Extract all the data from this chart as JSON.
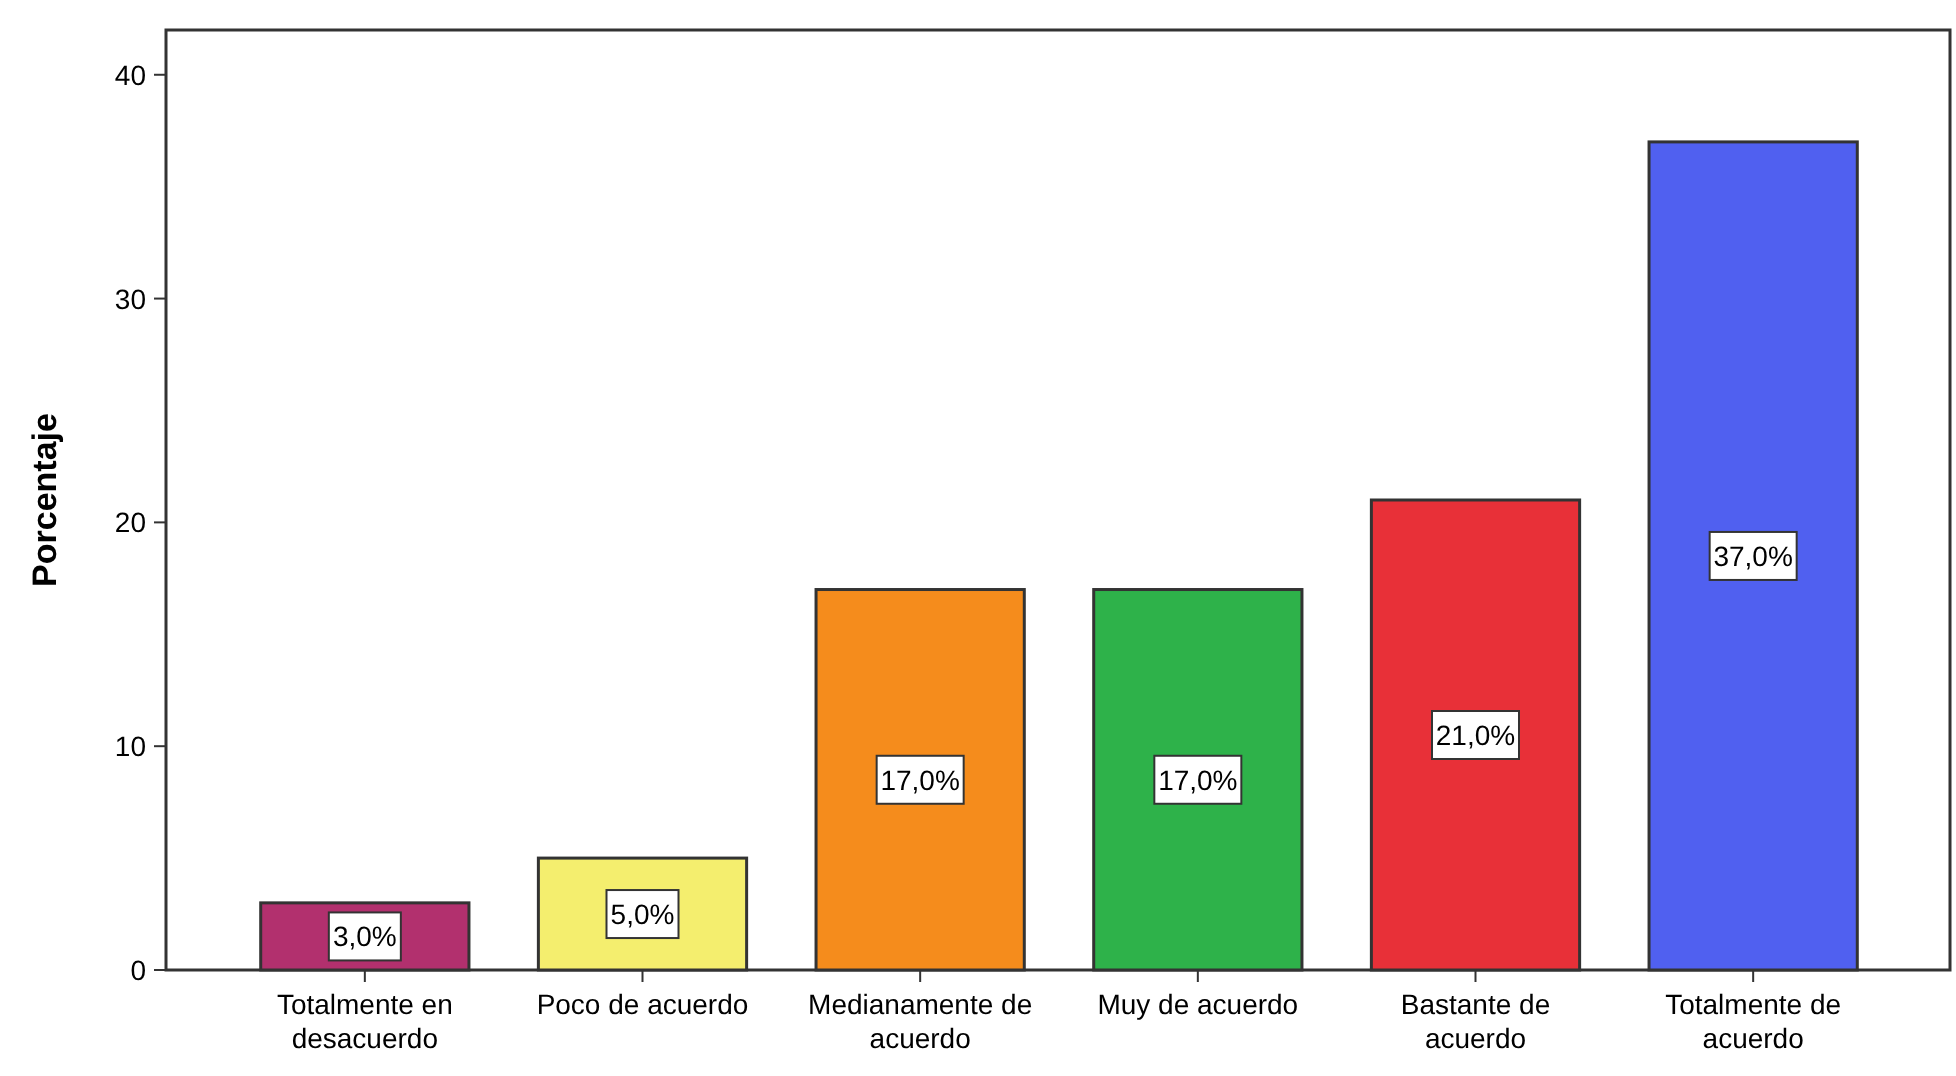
{
  "chart_data": {
    "type": "bar",
    "ylabel": "Porcentaje",
    "categories": [
      "Totalmente en desacuerdo",
      "Poco de acuerdo",
      "Medianamente de acuerdo",
      "Muy de acuerdo",
      "Bastante de acuerdo",
      "Totalmente de acuerdo"
    ],
    "values": [
      3,
      5,
      17,
      17,
      21,
      37
    ],
    "colors": [
      "#b2306e",
      "#f4ee6e",
      "#f58c1c",
      "#2eb24a",
      "#e83038",
      "#5060f0"
    ],
    "value_labels": [
      "3,0%",
      "5,0%",
      "17,0%",
      "17,0%",
      "21,0%",
      "37,0%"
    ],
    "ylim": [
      0,
      42
    ],
    "yticks": [
      0,
      10,
      20,
      30,
      40
    ],
    "grid": false
  }
}
